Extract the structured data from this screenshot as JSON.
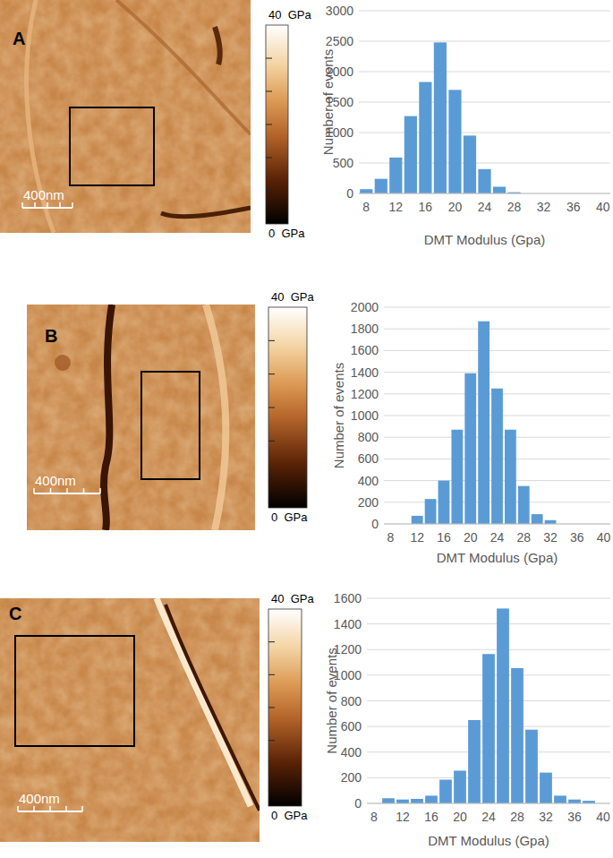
{
  "panels": [
    {
      "label": "A",
      "scale_bar": "400nm",
      "colorbar": {
        "range": [
          0,
          40
        ],
        "ticks": [
          6.67,
          13.33,
          20,
          26.67,
          33.33
        ],
        "max_label": "40  GPa",
        "min_label": "0  GPa"
      }
    },
    {
      "label": "B",
      "scale_bar": "400nm",
      "colorbar": {
        "range": [
          0,
          40
        ],
        "ticks": [
          6.67,
          13.33,
          20,
          26.67,
          33.33
        ],
        "max_label": "40  GPa",
        "min_label": "0  GPa"
      }
    },
    {
      "label": "C",
      "scale_bar": "400nm",
      "colorbar": {
        "range": [
          0,
          40
        ],
        "ticks": [
          6.67,
          13.33,
          20,
          26.67,
          33.33
        ],
        "max_label": "40  GPa",
        "min_label": "0  GPa"
      }
    }
  ],
  "chart_data": [
    {
      "type": "bar",
      "x_label": "DMT Modulus (Gpa)",
      "y_label": "Number of events",
      "categories": [
        "8",
        null,
        "12",
        null,
        "16",
        null,
        "20",
        null,
        "24",
        null,
        "28",
        null,
        "32",
        null,
        "36",
        null,
        "40"
      ],
      "values": [
        70,
        240,
        590,
        1270,
        1830,
        2480,
        1700,
        950,
        400,
        110,
        20,
        0,
        0,
        0,
        0,
        0,
        0
      ],
      "color": "#5b9bd5",
      "ylim": [
        0,
        3000
      ],
      "yticks": [
        0,
        500,
        1000,
        1500,
        2000,
        2500,
        3000
      ],
      "grid": true
    },
    {
      "type": "bar",
      "x_label": "DMT Modulus (Gpa)",
      "y_label": "Number of events",
      "categories": [
        "8",
        null,
        "12",
        null,
        "16",
        null,
        "20",
        null,
        "24",
        null,
        "28",
        null,
        "32",
        null,
        "36",
        null,
        "40"
      ],
      "values": [
        0,
        0,
        75,
        230,
        400,
        870,
        1390,
        1870,
        1250,
        870,
        350,
        90,
        35,
        0,
        0,
        0,
        0
      ],
      "color": "#5b9bd5",
      "ylim": [
        0,
        2000
      ],
      "yticks": [
        0,
        200,
        400,
        600,
        800,
        1000,
        1200,
        1400,
        1600,
        1800,
        2000
      ],
      "grid": true
    },
    {
      "type": "bar",
      "x_label": "DMT Modulus (Gpa)",
      "y_label": "Number of events",
      "categories": [
        "8",
        null,
        "12",
        null,
        "16",
        null,
        "20",
        null,
        "24",
        null,
        "28",
        null,
        "32",
        null,
        "36",
        null,
        "40"
      ],
      "values": [
        0,
        40,
        30,
        35,
        60,
        185,
        255,
        650,
        1165,
        1520,
        1055,
        575,
        240,
        60,
        30,
        20,
        0
      ],
      "color": "#5b9bd5",
      "ylim": [
        0,
        1600
      ],
      "yticks": [
        0,
        200,
        400,
        600,
        800,
        1000,
        1200,
        1400,
        1600
      ],
      "grid": true
    }
  ]
}
